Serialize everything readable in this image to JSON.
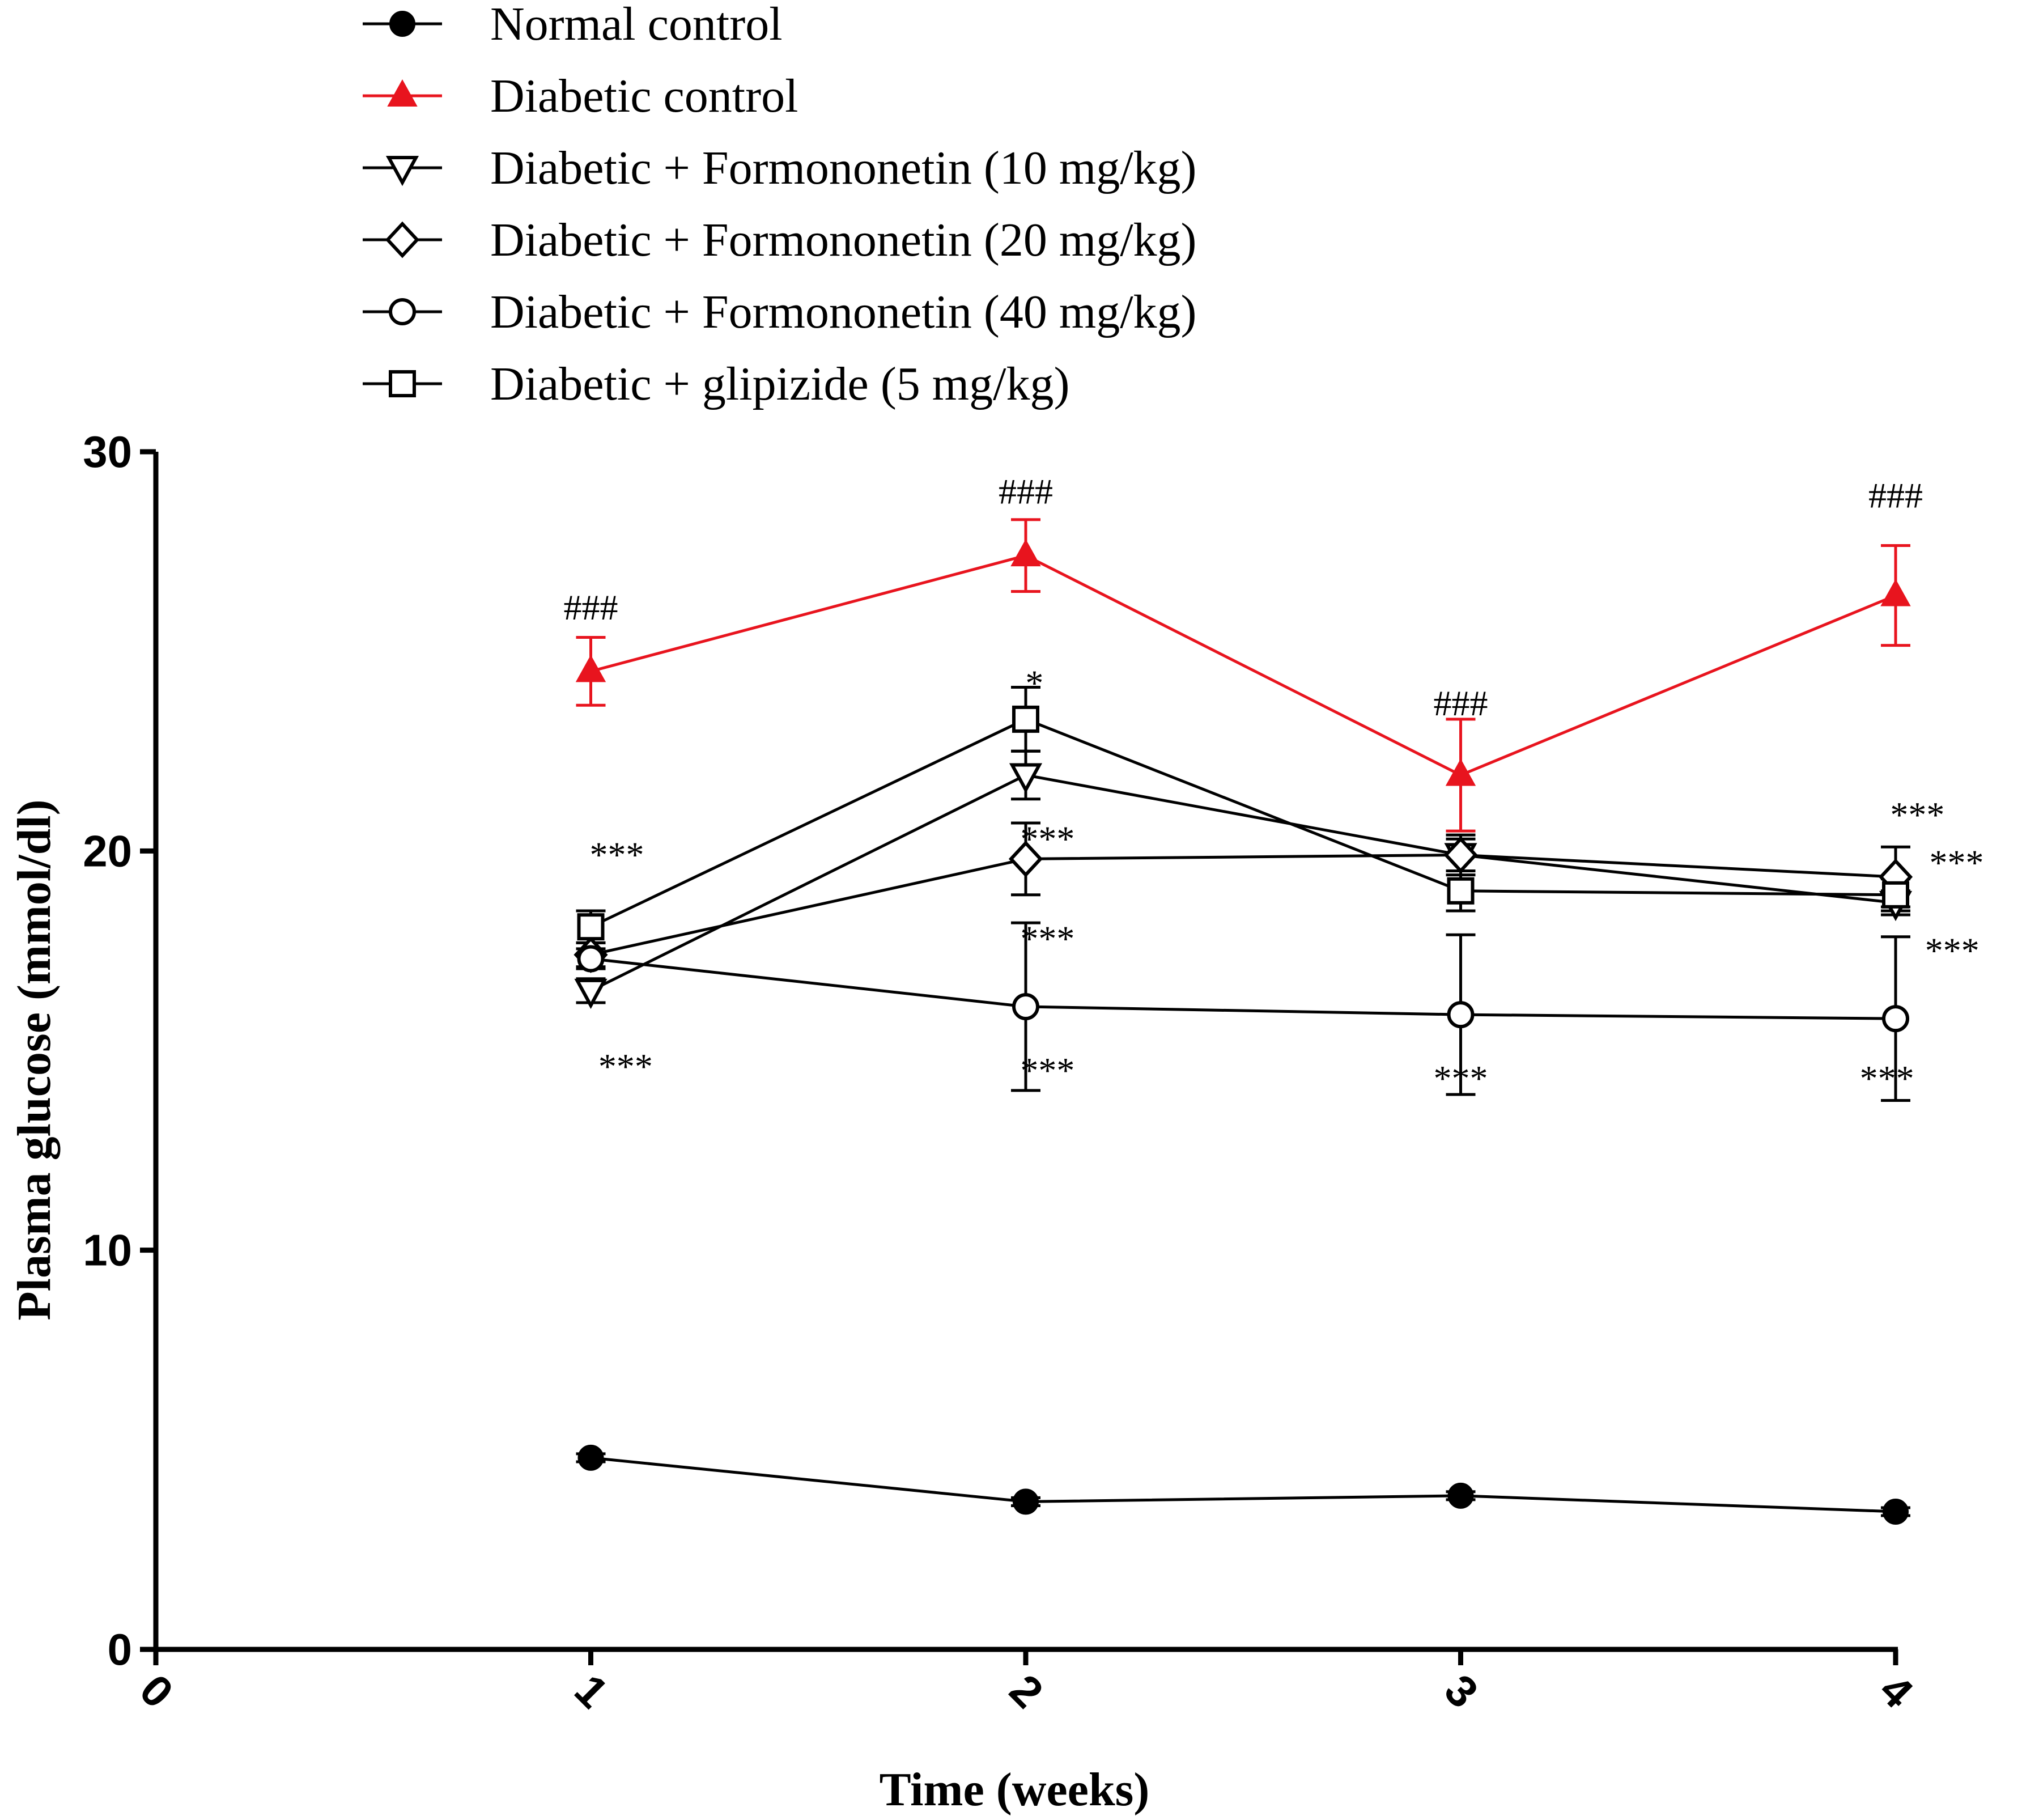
{
  "chart_data": {
    "type": "line",
    "title": "",
    "xlabel": "Time  (weeks)",
    "ylabel": "Plasma glucose (mmol/dl)",
    "xlim": [
      0,
      4
    ],
    "ylim": [
      0,
      30
    ],
    "x_ticks": [
      "0",
      "1",
      "2",
      "3",
      "4"
    ],
    "y_ticks": [
      "0",
      "10",
      "20",
      "30"
    ],
    "grid": false,
    "legend_position": "top-left above plot",
    "x": [
      1,
      2,
      3,
      4
    ],
    "series": [
      {
        "name": "Normal control",
        "marker": "filled-circle",
        "color": "#000000",
        "values": [
          4.8,
          3.7,
          3.85,
          3.45
        ],
        "errors": [
          0.1,
          0.1,
          0.1,
          0.1
        ]
      },
      {
        "name": "Diabetic control",
        "marker": "filled-triangle-up",
        "color": "#e8141e",
        "values": [
          24.5,
          27.4,
          21.9,
          26.4
        ],
        "errors": [
          0.85,
          0.9,
          1.4,
          1.25
        ]
      },
      {
        "name": "Diabetic + Formononetin (10 mg/kg)",
        "marker": "open-triangle-down",
        "color": "#000000",
        "values": [
          16.5,
          21.9,
          19.9,
          18.7
        ],
        "errors": [
          0.3,
          0.6,
          0.4,
          0.3
        ]
      },
      {
        "name": "Diabetic + Formononetin (20 mg/kg)",
        "marker": "open-diamond",
        "color": "#000000",
        "values": [
          17.4,
          19.8,
          19.9,
          19.35
        ],
        "errors": [
          0.3,
          0.9,
          0.5,
          0.75
        ]
      },
      {
        "name": "Diabetic + Formononetin (40 mg/kg)",
        "marker": "open-circle",
        "color": "#000000",
        "values": [
          17.3,
          16.1,
          15.9,
          15.8
        ],
        "errors": [
          0.25,
          2.1,
          2.0,
          2.05
        ]
      },
      {
        "name": "Diabetic + glipizide (5 mg/kg)",
        "marker": "open-square",
        "color": "#000000",
        "values": [
          18.1,
          23.3,
          19.0,
          18.9
        ],
        "errors": [
          0.4,
          0.8,
          0.5,
          0.4
        ]
      }
    ],
    "annotations": [
      {
        "text": "###",
        "x": 1,
        "y": 25.8
      },
      {
        "text": "###",
        "x": 2,
        "y": 28.7
      },
      {
        "text": "###",
        "x": 3,
        "y": 23.4
      },
      {
        "text": "###",
        "x": 4,
        "y": 28.6
      },
      {
        "text": "***",
        "x": 1.06,
        "y": 19.6
      },
      {
        "text": "***",
        "x": 1.08,
        "y": 14.3
      },
      {
        "text": "*",
        "x": 2.02,
        "y": 23.9
      },
      {
        "text": "***",
        "x": 2.05,
        "y": 20.0
      },
      {
        "text": "***",
        "x": 2.05,
        "y": 17.5
      },
      {
        "text": "***",
        "x": 2.05,
        "y": 14.2
      },
      {
        "text": "***",
        "x": 3.0,
        "y": 14.0
      },
      {
        "text": "***",
        "x": 4.05,
        "y": 20.6
      },
      {
        "text": "***",
        "x": 4.14,
        "y": 19.4
      },
      {
        "text": "***",
        "x": 4.13,
        "y": 17.2
      },
      {
        "text": "***",
        "x": 3.98,
        "y": 14.0
      }
    ]
  }
}
